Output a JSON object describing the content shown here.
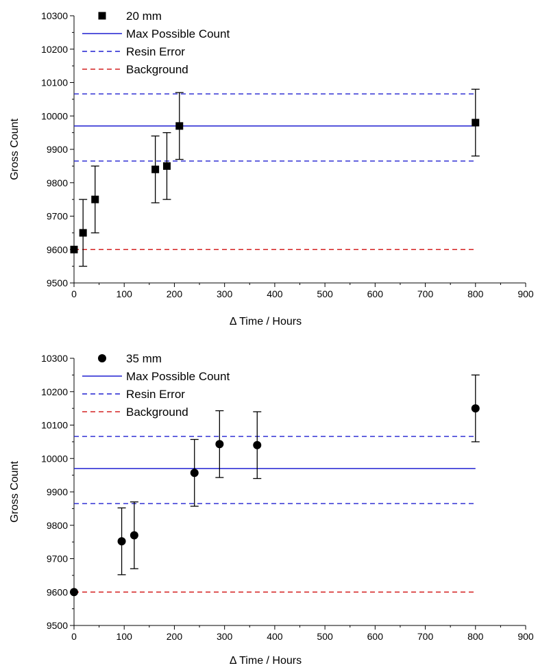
{
  "chart_data": [
    {
      "type": "scatter",
      "title": "",
      "xlabel": "Δ Time / Hours",
      "ylabel": "Gross Count",
      "xlim": [
        0,
        900
      ],
      "ylim": [
        9500,
        10300
      ],
      "x_ticks": [
        0,
        100,
        200,
        300,
        400,
        500,
        600,
        700,
        800,
        900
      ],
      "y_ticks": [
        9500,
        9600,
        9700,
        9800,
        9900,
        10000,
        10100,
        10200,
        10300
      ],
      "grid": false,
      "legend_position": "top-left",
      "series": [
        {
          "name": "20 mm",
          "kind": "points",
          "marker": "square",
          "color": "#000000",
          "points": [
            {
              "x": 0,
              "y": 9600,
              "err": 0
            },
            {
              "x": 18,
              "y": 9650,
              "err": 100
            },
            {
              "x": 42,
              "y": 9750,
              "err": 100
            },
            {
              "x": 162,
              "y": 9840,
              "err": 100
            },
            {
              "x": 185,
              "y": 9850,
              "err": 100
            },
            {
              "x": 210,
              "y": 9970,
              "err": 100
            },
            {
              "x": 800,
              "y": 9980,
              "err": 100
            }
          ]
        },
        {
          "name": "Max Possible Count",
          "kind": "hline",
          "style": "solid",
          "color": "#1f1fd0",
          "y": 9970,
          "x_range": [
            0,
            800
          ]
        },
        {
          "name": "Resin Error",
          "kind": "hline",
          "style": "dashed",
          "color": "#1f1fd0",
          "y": [
            10066,
            9865
          ],
          "x_range": [
            0,
            800
          ]
        },
        {
          "name": "Background",
          "kind": "hline",
          "style": "dashed",
          "color": "#d42020",
          "y": 9600,
          "x_range": [
            0,
            800
          ]
        }
      ]
    },
    {
      "type": "scatter",
      "title": "",
      "xlabel": "Δ Time / Hours",
      "ylabel": "Gross Count",
      "xlim": [
        0,
        900
      ],
      "ylim": [
        9500,
        10300
      ],
      "x_ticks": [
        0,
        100,
        200,
        300,
        400,
        500,
        600,
        700,
        800,
        900
      ],
      "y_ticks": [
        9500,
        9600,
        9700,
        9800,
        9900,
        10000,
        10100,
        10200,
        10300
      ],
      "grid": false,
      "legend_position": "top-left",
      "series": [
        {
          "name": "35 mm",
          "kind": "points",
          "marker": "circle",
          "color": "#000000",
          "points": [
            {
              "x": 0,
              "y": 9600,
              "err": 0
            },
            {
              "x": 95,
              "y": 9752,
              "err": 100
            },
            {
              "x": 120,
              "y": 9770,
              "err": 100
            },
            {
              "x": 240,
              "y": 9957,
              "err": 100
            },
            {
              "x": 290,
              "y": 10043,
              "err": 100
            },
            {
              "x": 365,
              "y": 10040,
              "err": 100
            },
            {
              "x": 800,
              "y": 10150,
              "err": 100
            }
          ]
        },
        {
          "name": "Max Possible Count",
          "kind": "hline",
          "style": "solid",
          "color": "#1f1fd0",
          "y": 9970,
          "x_range": [
            0,
            800
          ]
        },
        {
          "name": "Resin Error",
          "kind": "hline",
          "style": "dashed",
          "color": "#1f1fd0",
          "y": [
            10066,
            9865
          ],
          "x_range": [
            0,
            800
          ]
        },
        {
          "name": "Background",
          "kind": "hline",
          "style": "dashed",
          "color": "#d42020",
          "y": 9600,
          "x_range": [
            0,
            800
          ]
        }
      ]
    }
  ]
}
